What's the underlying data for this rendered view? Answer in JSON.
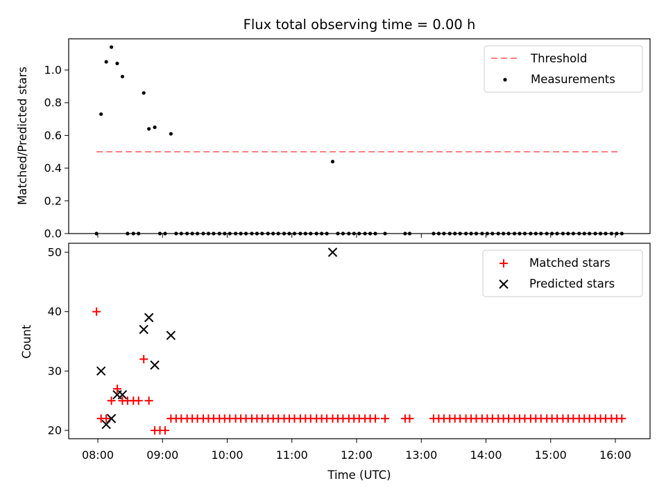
{
  "chart_data": {
    "title": "Flux total observing time = 0.00 h",
    "xlabel": "Time (UTC)",
    "xticks": [
      "08:00",
      "09:00",
      "10:00",
      "11:00",
      "12:00",
      "13:00",
      "14:00",
      "15:00",
      "16:00"
    ],
    "panels": [
      {
        "type": "scatter",
        "ylabel": "Matched/Predicted stars",
        "ylim": [
          0,
          1.2
        ],
        "yticks": [
          "0.0",
          "0.2",
          "0.4",
          "0.6",
          "0.8",
          "1.0"
        ],
        "legend_position": "upper right",
        "threshold": {
          "name": "Threshold",
          "value": 0.5,
          "x_start": 7.98,
          "x_end": 16.07,
          "color": "#ff7f7f"
        },
        "series": [
          {
            "name": "Measurements",
            "color": "#000000",
            "points": [
              [
                7.98,
                0
              ],
              [
                8.05,
                0.73
              ],
              [
                8.13,
                1.05
              ],
              [
                8.21,
                1.14
              ],
              [
                8.3,
                1.04
              ],
              [
                8.38,
                0.96
              ],
              [
                8.46,
                0
              ],
              [
                8.55,
                0
              ],
              [
                8.63,
                0
              ],
              [
                8.71,
                0.86
              ],
              [
                8.79,
                0.64
              ],
              [
                8.88,
                0.65
              ],
              [
                8.96,
                0
              ],
              [
                9.04,
                0
              ],
              [
                9.13,
                0.61
              ],
              [
                9.21,
                0
              ],
              [
                9.29,
                0
              ],
              [
                9.38,
                0
              ],
              [
                9.46,
                0
              ],
              [
                9.54,
                0
              ],
              [
                9.63,
                0
              ],
              [
                9.71,
                0
              ],
              [
                9.79,
                0
              ],
              [
                9.88,
                0
              ],
              [
                9.96,
                0
              ],
              [
                10.04,
                0
              ],
              [
                10.13,
                0
              ],
              [
                10.21,
                0
              ],
              [
                10.29,
                0
              ],
              [
                10.38,
                0
              ],
              [
                10.46,
                0
              ],
              [
                10.54,
                0
              ],
              [
                10.63,
                0
              ],
              [
                10.71,
                0
              ],
              [
                10.79,
                0
              ],
              [
                10.88,
                0
              ],
              [
                10.96,
                0
              ],
              [
                11.04,
                0
              ],
              [
                11.13,
                0
              ],
              [
                11.21,
                0
              ],
              [
                11.29,
                0
              ],
              [
                11.38,
                0
              ],
              [
                11.46,
                0
              ],
              [
                11.54,
                0
              ],
              [
                11.63,
                0.44
              ],
              [
                11.71,
                0
              ],
              [
                11.79,
                0
              ],
              [
                11.88,
                0
              ],
              [
                11.96,
                0
              ],
              [
                12.04,
                0
              ],
              [
                12.13,
                0
              ],
              [
                12.21,
                0
              ],
              [
                12.29,
                0
              ],
              [
                12.44,
                0
              ],
              [
                12.75,
                0
              ],
              [
                12.82,
                0
              ],
              [
                13.19,
                0
              ],
              [
                13.27,
                0
              ],
              [
                13.35,
                0
              ],
              [
                13.44,
                0
              ],
              [
                13.52,
                0
              ],
              [
                13.6,
                0
              ],
              [
                13.69,
                0
              ],
              [
                13.77,
                0
              ],
              [
                13.85,
                0
              ],
              [
                13.94,
                0
              ],
              [
                14.02,
                0
              ],
              [
                14.1,
                0
              ],
              [
                14.19,
                0
              ],
              [
                14.27,
                0
              ],
              [
                14.35,
                0
              ],
              [
                14.44,
                0
              ],
              [
                14.52,
                0
              ],
              [
                14.6,
                0
              ],
              [
                14.69,
                0
              ],
              [
                14.77,
                0
              ],
              [
                14.85,
                0
              ],
              [
                14.94,
                0
              ],
              [
                15.02,
                0
              ],
              [
                15.1,
                0
              ],
              [
                15.19,
                0
              ],
              [
                15.27,
                0
              ],
              [
                15.35,
                0
              ],
              [
                15.44,
                0
              ],
              [
                15.52,
                0
              ],
              [
                15.6,
                0
              ],
              [
                15.69,
                0
              ],
              [
                15.77,
                0
              ],
              [
                15.85,
                0
              ],
              [
                15.94,
                0
              ],
              [
                16.02,
                0
              ],
              [
                16.1,
                0
              ]
            ]
          }
        ]
      },
      {
        "type": "scatter",
        "ylabel": "Count",
        "ylim": [
          18.5,
          51.5
        ],
        "yticks": [
          "20",
          "30",
          "40",
          "50"
        ],
        "legend_position": "upper right",
        "series": [
          {
            "name": "Matched stars",
            "marker": "plus",
            "color": "#ff0000",
            "points": [
              [
                7.98,
                40
              ],
              [
                8.05,
                22
              ],
              [
                8.13,
                22
              ],
              [
                8.21,
                25
              ],
              [
                8.3,
                27
              ],
              [
                8.38,
                25
              ],
              [
                8.46,
                25
              ],
              [
                8.55,
                25
              ],
              [
                8.63,
                25
              ],
              [
                8.71,
                32
              ],
              [
                8.79,
                25
              ],
              [
                8.88,
                20
              ],
              [
                8.96,
                20
              ],
              [
                9.04,
                20
              ],
              [
                9.13,
                22
              ],
              [
                9.21,
                22
              ],
              [
                9.29,
                22
              ],
              [
                9.38,
                22
              ],
              [
                9.46,
                22
              ],
              [
                9.54,
                22
              ],
              [
                9.63,
                22
              ],
              [
                9.71,
                22
              ],
              [
                9.79,
                22
              ],
              [
                9.88,
                22
              ],
              [
                9.96,
                22
              ],
              [
                10.04,
                22
              ],
              [
                10.13,
                22
              ],
              [
                10.21,
                22
              ],
              [
                10.29,
                22
              ],
              [
                10.38,
                22
              ],
              [
                10.46,
                22
              ],
              [
                10.54,
                22
              ],
              [
                10.63,
                22
              ],
              [
                10.71,
                22
              ],
              [
                10.79,
                22
              ],
              [
                10.88,
                22
              ],
              [
                10.96,
                22
              ],
              [
                11.04,
                22
              ],
              [
                11.13,
                22
              ],
              [
                11.21,
                22
              ],
              [
                11.29,
                22
              ],
              [
                11.38,
                22
              ],
              [
                11.46,
                22
              ],
              [
                11.54,
                22
              ],
              [
                11.63,
                22
              ],
              [
                11.71,
                22
              ],
              [
                11.79,
                22
              ],
              [
                11.88,
                22
              ],
              [
                11.96,
                22
              ],
              [
                12.04,
                22
              ],
              [
                12.13,
                22
              ],
              [
                12.21,
                22
              ],
              [
                12.29,
                22
              ],
              [
                12.44,
                22
              ],
              [
                12.75,
                22
              ],
              [
                12.82,
                22
              ],
              [
                13.19,
                22
              ],
              [
                13.27,
                22
              ],
              [
                13.35,
                22
              ],
              [
                13.44,
                22
              ],
              [
                13.52,
                22
              ],
              [
                13.6,
                22
              ],
              [
                13.69,
                22
              ],
              [
                13.77,
                22
              ],
              [
                13.85,
                22
              ],
              [
                13.94,
                22
              ],
              [
                14.02,
                22
              ],
              [
                14.1,
                22
              ],
              [
                14.19,
                22
              ],
              [
                14.27,
                22
              ],
              [
                14.35,
                22
              ],
              [
                14.44,
                22
              ],
              [
                14.52,
                22
              ],
              [
                14.6,
                22
              ],
              [
                14.69,
                22
              ],
              [
                14.77,
                22
              ],
              [
                14.85,
                22
              ],
              [
                14.94,
                22
              ],
              [
                15.02,
                22
              ],
              [
                15.1,
                22
              ],
              [
                15.19,
                22
              ],
              [
                15.27,
                22
              ],
              [
                15.35,
                22
              ],
              [
                15.44,
                22
              ],
              [
                15.52,
                22
              ],
              [
                15.6,
                22
              ],
              [
                15.69,
                22
              ],
              [
                15.77,
                22
              ],
              [
                15.85,
                22
              ],
              [
                15.94,
                22
              ],
              [
                16.02,
                22
              ],
              [
                16.1,
                22
              ]
            ]
          },
          {
            "name": "Predicted stars",
            "marker": "x",
            "color": "#000000",
            "points": [
              [
                8.05,
                30
              ],
              [
                8.13,
                21
              ],
              [
                8.21,
                22
              ],
              [
                8.3,
                26
              ],
              [
                8.38,
                26
              ],
              [
                8.71,
                37
              ],
              [
                8.79,
                39
              ],
              [
                8.88,
                31
              ],
              [
                9.13,
                36
              ],
              [
                11.63,
                50
              ]
            ]
          }
        ]
      }
    ]
  }
}
